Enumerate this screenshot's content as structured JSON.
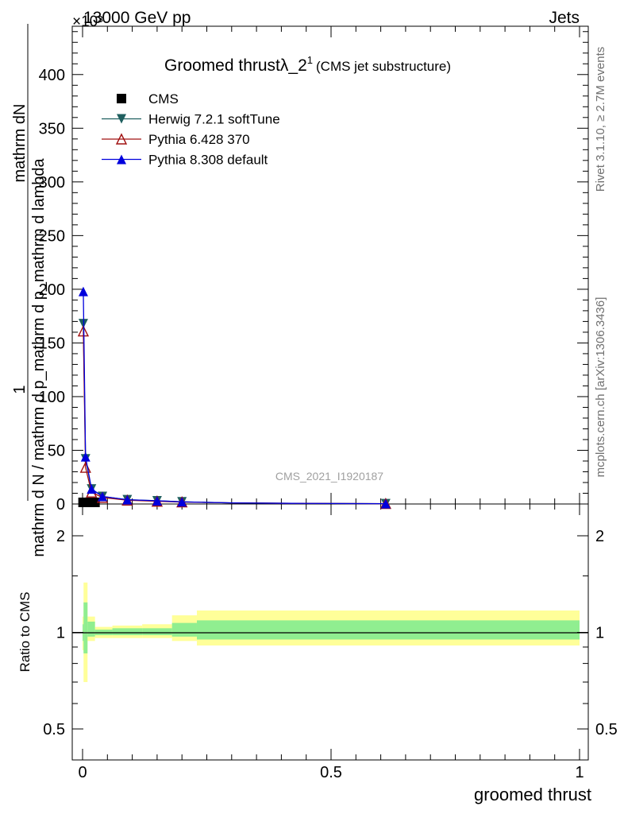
{
  "header": {
    "energy_label": "13000 GeV pp",
    "process_label": "Jets",
    "exponent_label": "×10³"
  },
  "side_labels": {
    "rivet_version": "Rivet 3.1.10, ≥ 2.7M events",
    "source": "mcplots.cern.ch [arXiv:1306.3436]"
  },
  "watermark": "CMS_2021_I1920187",
  "chart_data": [
    {
      "type": "line",
      "title": "Groomed thrustλ_2",
      "title_superscript": "1",
      "subtitle": "(CMS jet substructure)",
      "ylabel_parts": [
        "1",
        "mathrm d N / mathrm d p_mathrm d p_mathrm d lambda",
        "mathrm d N",
        "mathrm d N"
      ],
      "ylabel_numerator": "mathrm dN",
      "ylabel_fraction": "mathrm d N / mathrm d p_mathrm d p_mathrm d lambda",
      "ylabel_one": "1",
      "ylabel_denominator_text": "mathrm d N / mathrm d p_mathrm d p_mathrm d lambda",
      "ylabel_top_text": "mathrm d N / mathrm d p_mathrm d p_mathrm d lambda",
      "ylabel_line1": "mathrm dN",
      "ylabel_line2": "mathrm d p_ mathrm d p_ mathrm d lambda",
      "ylabel_line3": "mathrm d N / mathrm d p_mathrm d p mathrm d p_mathrm d lambda",
      "xlim": [
        0,
        1
      ],
      "ylim": [
        0,
        445
      ],
      "y_scale_note": "×10³",
      "yticks": [
        0,
        50,
        100,
        150,
        200,
        250,
        300,
        350,
        400
      ],
      "legend_position": "top-left",
      "series": [
        {
          "name": "CMS",
          "marker": "square",
          "color": "#000000",
          "x": [
            0.001,
            0.004,
            0.008,
            0.015,
            0.025
          ],
          "y": [
            1.5,
            1.5,
            1.5,
            1.5,
            1.5
          ]
        },
        {
          "name": "Herwig 7.2.1 softTune",
          "marker": "triangle-down",
          "color": "#1f5f5f",
          "x": [
            0.0015,
            0.006,
            0.018,
            0.04,
            0.09,
            0.15,
            0.2,
            0.3,
            0.42,
            0.61
          ],
          "y": [
            168,
            42,
            14,
            7,
            4,
            3,
            2,
            1,
            0.6,
            0.3
          ]
        },
        {
          "name": "Pythia 6.428 370",
          "marker": "triangle-open",
          "color": "#a01010",
          "x": [
            0.0015,
            0.006,
            0.018,
            0.04,
            0.09,
            0.15,
            0.2,
            0.3,
            0.42,
            0.61
          ],
          "y": [
            161,
            34,
            11,
            6,
            3.5,
            2.5,
            1.8,
            1,
            0.6,
            0.3
          ]
        },
        {
          "name": "Pythia 8.308 default",
          "marker": "triangle-up",
          "color": "#0000dd",
          "x": [
            0.0015,
            0.006,
            0.018,
            0.04,
            0.09,
            0.15,
            0.2,
            0.3,
            0.42,
            0.61
          ],
          "y": [
            198,
            44,
            14,
            7,
            4,
            3,
            2,
            1,
            0.6,
            0.3
          ]
        }
      ]
    },
    {
      "type": "area",
      "ylabel": "Ratio to CMS",
      "xlabel": "groomed thrust",
      "xlim": [
        0,
        1
      ],
      "ylim": [
        0.4,
        2.3
      ],
      "yticks": [
        0.5,
        1,
        2
      ],
      "xticks": [
        0,
        0.5,
        1
      ],
      "ytick_labels": [
        "0.5",
        "1",
        "2"
      ],
      "xtick_labels": [
        "0",
        "0.5",
        "1"
      ],
      "bands": {
        "bin_edges": [
          0,
          0.002,
          0.01,
          0.025,
          0.06,
          0.12,
          0.18,
          0.23,
          1
        ],
        "outer_low": [
          0.88,
          0.7,
          0.94,
          0.96,
          0.96,
          0.96,
          0.94,
          0.91
        ],
        "outer_high": [
          1.12,
          1.43,
          1.12,
          1.04,
          1.05,
          1.06,
          1.13,
          1.17
        ],
        "inner_low": [
          0.94,
          0.86,
          0.97,
          0.98,
          0.98,
          0.98,
          0.97,
          0.95
        ],
        "inner_high": [
          1.06,
          1.24,
          1.08,
          1.02,
          1.03,
          1.03,
          1.07,
          1.09
        ]
      },
      "colors": {
        "outer": "#ffff99",
        "inner": "#90ee90",
        "reference": "#000000"
      }
    }
  ]
}
